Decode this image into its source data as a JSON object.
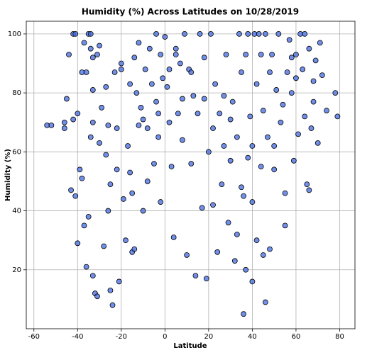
{
  "chart_data": {
    "type": "scatter",
    "title": "Humidity (%) Across Latitudes on 10/28/2019",
    "x_label": "Latitude",
    "y_label": "Humidity (%)",
    "color": "#4169e1",
    "edgecolor": "#000000",
    "grid": true,
    "xlim": [
      -63.5,
      87
    ],
    "ylim": [
      0,
      104.3
    ],
    "xticks": [
      -60,
      -40,
      -20,
      0,
      20,
      40,
      60,
      80
    ],
    "yticks": [
      20,
      40,
      60,
      80,
      100
    ],
    "x": [
      -54,
      -52,
      -46,
      -46,
      -45,
      -44,
      -43,
      -42,
      -42,
      -41,
      -41,
      -40,
      -39,
      -38,
      -37,
      -36,
      -37,
      -36,
      -35,
      -35,
      -34,
      -34,
      -34,
      -33,
      -33,
      -33,
      -32,
      -31,
      -31,
      -30,
      -29,
      -28,
      -27,
      -27,
      -26,
      -25,
      -25,
      -24,
      -23,
      -22,
      -22,
      -21,
      -20,
      -19,
      -18,
      -17,
      -16,
      -15,
      -15,
      -14,
      -13,
      -12,
      -11,
      -10,
      -9,
      -8,
      -7,
      -6,
      -5,
      -4,
      -4,
      -3,
      -2,
      -2,
      -1,
      0,
      1,
      2,
      3,
      4,
      5,
      6,
      7,
      8,
      9,
      10,
      11,
      12,
      13,
      14,
      15,
      16,
      17,
      18,
      19,
      20,
      21,
      22,
      23,
      24,
      25,
      26,
      27,
      28,
      29,
      30,
      31,
      32,
      33,
      34,
      35,
      36,
      36,
      37,
      37,
      38,
      39,
      40,
      40,
      41,
      42,
      42,
      43,
      44,
      44,
      45,
      46,
      46,
      47,
      48,
      49,
      50,
      51,
      52,
      53,
      54,
      55,
      56,
      57,
      58,
      59,
      60,
      61,
      62,
      63,
      64,
      65,
      66,
      67,
      68,
      69,
      70,
      71,
      72,
      74,
      78,
      79,
      64,
      66,
      60,
      55,
      45,
      40,
      38,
      35,
      33,
      30,
      27,
      22,
      18,
      12,
      8,
      5,
      2,
      -3,
      -8,
      -12,
      -16,
      -20,
      -26,
      -30,
      -33,
      -38,
      -40,
      -10,
      -14,
      50,
      48,
      58,
      68
    ],
    "values": [
      69,
      69,
      70,
      68,
      78,
      93,
      47,
      71,
      100,
      100,
      45,
      73,
      54,
      87,
      97,
      87,
      35,
      21,
      38,
      100,
      100,
      95,
      65,
      18,
      81,
      92,
      12,
      11,
      93,
      63,
      75,
      28,
      59,
      82,
      40,
      13,
      49,
      8,
      87,
      68,
      54,
      16,
      90,
      44,
      30,
      62,
      53,
      46,
      26,
      92,
      80,
      97,
      75,
      40,
      88,
      68,
      95,
      83,
      56,
      100,
      77,
      65,
      93,
      43,
      85,
      99,
      82,
      70,
      55,
      31,
      95,
      73,
      90,
      64,
      100,
      25,
      88,
      56,
      79,
      18,
      73,
      100,
      41,
      92,
      17,
      60,
      100,
      42,
      83,
      26,
      73,
      49,
      62,
      93,
      36,
      57,
      77,
      23,
      65,
      100,
      87,
      45,
      5,
      93,
      20,
      100,
      72,
      62,
      16,
      100,
      30,
      83,
      100,
      93,
      55,
      74,
      100,
      9,
      65,
      87,
      93,
      54,
      81,
      100,
      70,
      76,
      46,
      87,
      98,
      80,
      57,
      93,
      66,
      100,
      88,
      72,
      49,
      95,
      68,
      84,
      91,
      63,
      97,
      86,
      74,
      80,
      72,
      100,
      47,
      85,
      35,
      25,
      43,
      58,
      48,
      32,
      71,
      79,
      68,
      78,
      87,
      78,
      93,
      88,
      73,
      50,
      69,
      83,
      88,
      69,
      96,
      70,
      51,
      29,
      71,
      27,
      62,
      27,
      92,
      77
    ]
  }
}
